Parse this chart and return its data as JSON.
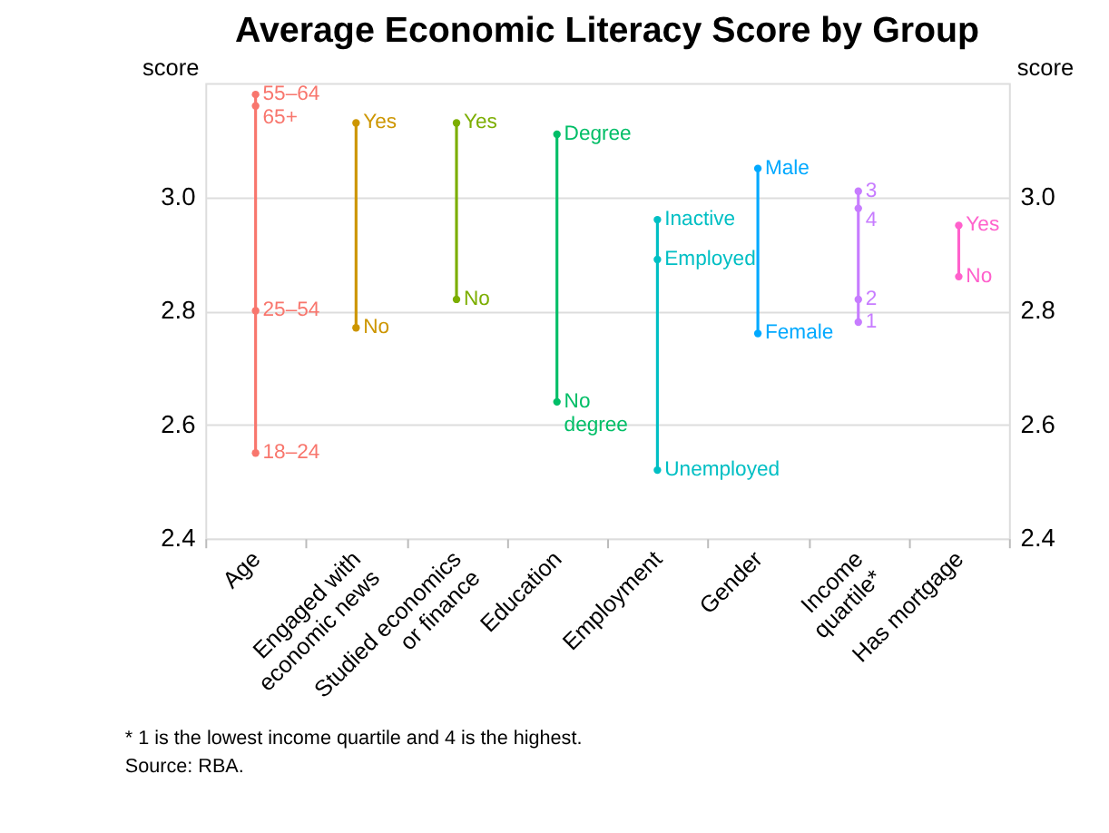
{
  "chart_data": {
    "type": "line",
    "title": "Average Economic Literacy Score by Group",
    "categories": [
      "Age",
      "Engaged with\neconomic news",
      "Studied economics\nor finance",
      "Education",
      "Employment",
      "Gender",
      "Income\nquartile*",
      "Has mortgage"
    ],
    "ylabel": "score",
    "y2label": "score",
    "ylim": [
      2.4,
      3.2
    ],
    "yticks": [
      2.4,
      2.6,
      2.8,
      {
        "value": 3.0,
        "label": "3.0"
      }
    ],
    "y2lim": [
      2.4,
      3.2
    ],
    "y2ticks": [
      2.4,
      2.6,
      2.8,
      {
        "value": 3.0,
        "label": "3.0"
      }
    ],
    "grid": "y",
    "legend": false,
    "marker": "circle",
    "line_style": "solid",
    "series": [
      {
        "color": "#f8766d",
        "x": [
          "Age",
          "Age",
          "Age",
          "Age"
        ],
        "values": [
          3.18,
          3.16,
          2.8,
          2.55
        ]
      },
      {
        "color": "#cd9600",
        "x": [
          "Engaged with\neconomic news",
          "Engaged with\neconomic news"
        ],
        "values": [
          3.13,
          2.77
        ]
      },
      {
        "color": "#7cae00",
        "x": [
          "Studied economics\nor finance",
          "Studied economics\nor finance"
        ],
        "values": [
          3.13,
          2.82
        ]
      },
      {
        "color": "#00be67",
        "x": [
          "Education",
          "Education"
        ],
        "values": [
          3.11,
          2.64
        ]
      },
      {
        "color": "#00bfc4",
        "x": [
          "Employment",
          "Employment",
          "Employment"
        ],
        "values": [
          2.96,
          2.89,
          2.52
        ]
      },
      {
        "color": "#00a9ff",
        "x": [
          "Gender",
          "Gender"
        ],
        "values": [
          3.05,
          2.76
        ]
      },
      {
        "color": "#c77cff",
        "x": [
          "Income\nquartile*",
          "Income\nquartile*",
          "Income\nquartile*",
          "Income\nquartile*"
        ],
        "values": [
          3.01,
          2.98,
          2.82,
          2.78
        ]
      },
      {
        "color": "#ff61cc",
        "x": [
          "Has mortgage",
          "Has mortgage"
        ],
        "values": [
          2.95,
          2.86
        ]
      }
    ],
    "annotations": [
      {
        "text": "55–64",
        "x": "Age",
        "y": 3.18
      },
      {
        "text": "65+",
        "x": "Age",
        "y": 3.16
      },
      {
        "text": "25–54",
        "x": "Age",
        "y": 2.8
      },
      {
        "text": "18–24",
        "x": "Age",
        "y": 2.55
      },
      {
        "text": "Yes",
        "x": "Engaged with\neconomic news",
        "y": 3.13
      },
      {
        "text": "No",
        "x": "Engaged with\neconomic news",
        "y": 2.77
      },
      {
        "text": "Yes",
        "x": "Studied economics\nor finance",
        "y": 3.13
      },
      {
        "text": "No",
        "x": "Studied economics\nor finance",
        "y": 2.82
      },
      {
        "text": "Degree",
        "x": "Education",
        "y": 3.11
      },
      {
        "text": "No\ndegree",
        "x": "Education",
        "y": 2.64
      },
      {
        "text": "Inactive",
        "x": "Employment",
        "y": 2.96
      },
      {
        "text": "Employed",
        "x": "Employment",
        "y": 2.89
      },
      {
        "text": "Unemployed",
        "x": "Employment",
        "y": 2.52
      },
      {
        "text": "Male",
        "x": "Gender",
        "y": 3.05
      },
      {
        "text": "Female",
        "x": "Gender",
        "y": 2.76
      },
      {
        "text": "3",
        "x": "Income\nquartile*",
        "y": 3.01
      },
      {
        "text": "4",
        "x": "Income\nquartile*",
        "y": 2.98
      },
      {
        "text": "2",
        "x": "Income\nquartile*",
        "y": 2.82
      },
      {
        "text": "1",
        "x": "Income\nquartile*",
        "y": 2.78
      },
      {
        "text": "Yes",
        "x": "Has mortgage",
        "y": 2.95
      },
      {
        "text": "No",
        "x": "Has mortgage",
        "y": 2.86
      },
      "*     1 is the lowest income quartile and 4 is the highest.",
      "Source:  RBA."
    ]
  }
}
